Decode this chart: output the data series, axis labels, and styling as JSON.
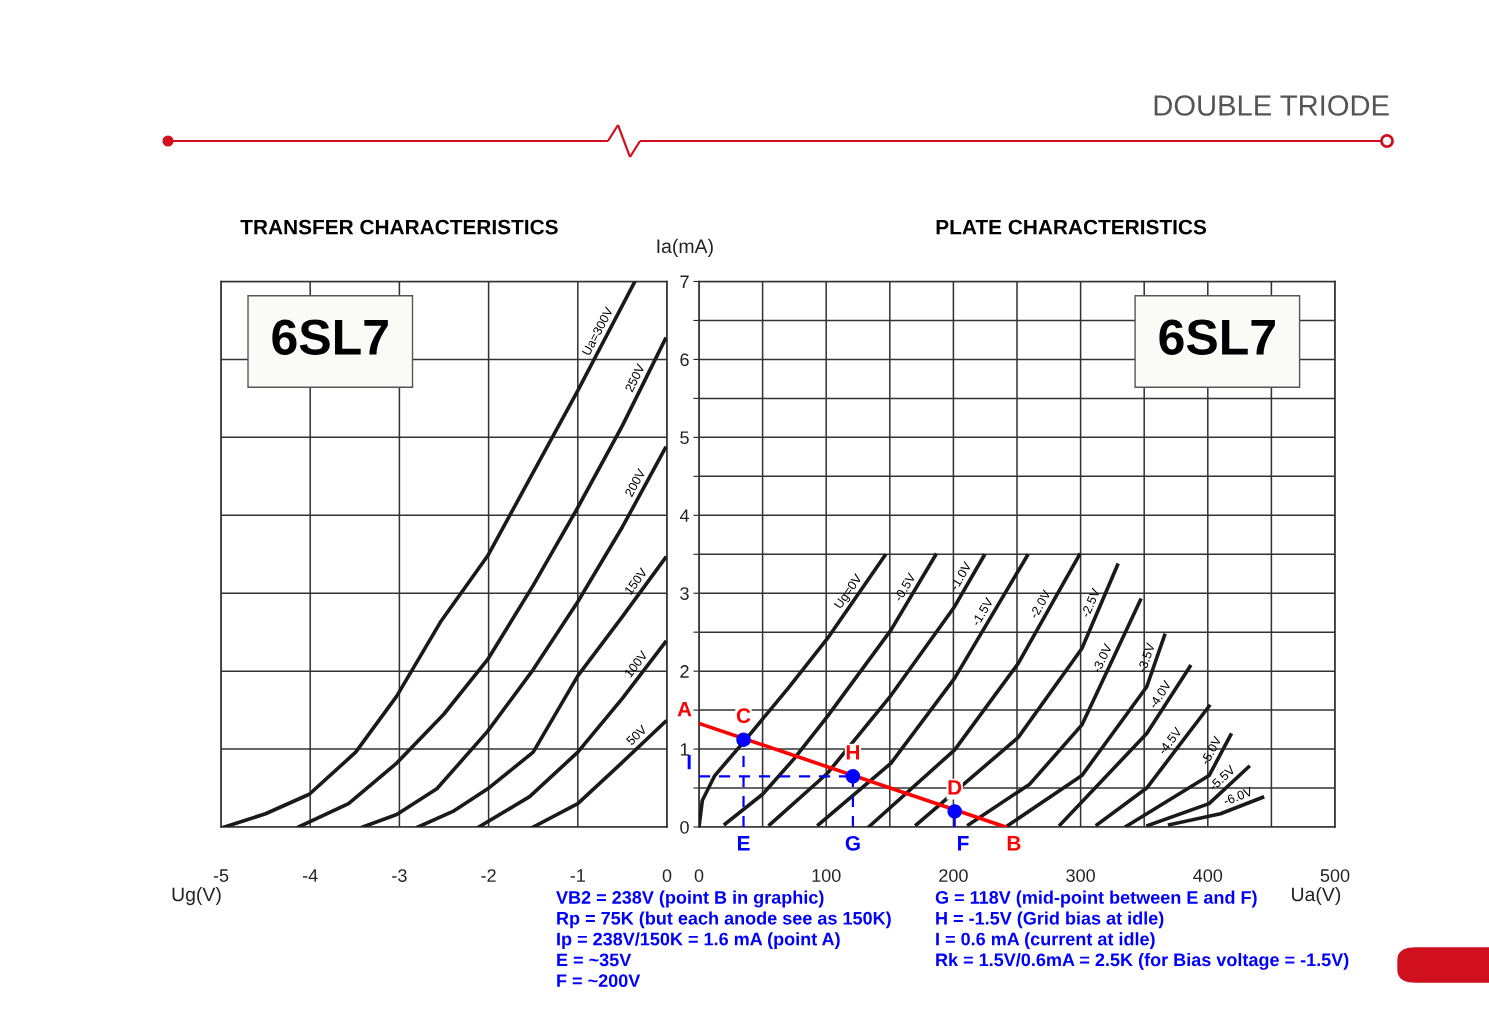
{
  "chart_data": [
    {
      "type": "line",
      "title": "TRANSFER CHARACTERISTICS",
      "xlabel": "Ug(V)",
      "ylabel": "Ia(mA)",
      "xlim": [
        -5,
        0
      ],
      "ylim": [
        0,
        7
      ],
      "xticks": [
        -5,
        -4,
        -3,
        -2,
        -1,
        0
      ],
      "yticks": [
        0,
        1,
        2,
        3,
        4,
        5,
        6,
        7
      ],
      "grid": true,
      "annotations": [
        "6SL7",
        "DOUBLE TRIODE"
      ],
      "series": [
        {
          "name": "Ua=300V",
          "color": "#1a1a1a",
          "x": [
            -4.96,
            -4.5,
            -4.01,
            -3.49,
            -3.03,
            -2.54,
            -2.01,
            -1.5,
            -1.0,
            -0.36
          ],
          "values": [
            0,
            0.17,
            0.42,
            0.96,
            1.68,
            2.63,
            3.48,
            4.55,
            5.6,
            7.0
          ]
        },
        {
          "name": "250V",
          "color": "#1a1a1a",
          "x": [
            -4.13,
            -3.57,
            -3.03,
            -2.5,
            -2.01,
            -1.5,
            -1.0,
            -0.5,
            -0.02
          ],
          "values": [
            0,
            0.3,
            0.82,
            1.45,
            2.15,
            3.1,
            4.1,
            5.15,
            6.26
          ]
        },
        {
          "name": "200V",
          "color": "#1a1a1a",
          "x": [
            -3.41,
            -3.03,
            -2.58,
            -2.01,
            -1.5,
            -1.0,
            -0.5,
            -0.02
          ],
          "values": [
            0,
            0.16,
            0.49,
            1.23,
            2.02,
            2.89,
            3.85,
            4.86
          ]
        },
        {
          "name": "150V",
          "color": "#1a1a1a",
          "x": [
            -2.79,
            -2.4,
            -2.01,
            -1.5,
            -1.0,
            -0.5,
            -0.02
          ],
          "values": [
            0,
            0.2,
            0.49,
            0.96,
            1.94,
            2.7,
            3.45
          ]
        },
        {
          "name": "100V",
          "color": "#1a1a1a",
          "x": [
            -2.11,
            -1.54,
            -1.0,
            -0.5,
            -0.02
          ],
          "values": [
            0,
            0.39,
            0.96,
            1.65,
            2.37
          ]
        },
        {
          "name": "50V",
          "color": "#1a1a1a",
          "x": [
            -1.5,
            -1.0,
            -0.51,
            -0.02
          ],
          "values": [
            0,
            0.3,
            0.82,
            1.35
          ]
        }
      ]
    },
    {
      "type": "line",
      "title": "PLATE CHARACTERISTICS",
      "xlabel": "Ua(V)",
      "xlim": [
        0,
        500
      ],
      "ylim": [
        0,
        7
      ],
      "tick_labels": "x",
      "grid": true,
      "xticks": [
        0,
        {
          "value": 50,
          "label": null
        },
        100,
        {
          "value": 150,
          "label": null
        },
        200,
        {
          "value": 250,
          "label": null
        },
        300,
        {
          "value": 350,
          "label": null
        },
        400,
        {
          "value": 450,
          "label": null
        },
        500
      ],
      "yticks": [
        0,
        {
          "value": 0.5,
          "label": null
        },
        1,
        {
          "value": 1.5,
          "label": null
        },
        2,
        {
          "value": 2.5,
          "label": null
        },
        3,
        {
          "value": 3.5,
          "label": null
        },
        4,
        {
          "value": 4.5,
          "label": null
        },
        5,
        {
          "value": 5.5,
          "label": null
        },
        6,
        {
          "value": 6.5,
          "label": null
        },
        7
      ],
      "annotations": [
        "6SL7",
        {
          "text": "A",
          "x": 0,
          "y": 1.33
        },
        {
          "text": "B",
          "x": 241,
          "y": 0
        },
        {
          "text": "C",
          "x": 35,
          "y": 1.12
        },
        {
          "text": "D",
          "x": 201,
          "y": 0.2
        },
        {
          "text": "E",
          "x": 35,
          "y": 0
        },
        {
          "text": "F",
          "x": 201,
          "y": 0
        },
        {
          "text": "G",
          "x": 121,
          "y": 0
        },
        {
          "text": "H",
          "x": 121,
          "y": 0.65
        },
        {
          "text": "I",
          "x": 0,
          "y": 0.65
        },
        "VB2 = 238V (point B in graphic)",
        "Rp = 75K (but each anode see as 150K)",
        "Ip = 238V/150K = 1.6 mA (point A)",
        "E = ~35V",
        "F = ~200V",
        "G = 118V (mid-point between E and F)",
        "H = -1.5V (Grid bias at idle)",
        "I = 0.6 mA (current at idle)",
        "Rk = 1.5V/0.6mA = 2.5K (for Bias voltage = -1.5V)"
      ],
      "series": [
        {
          "name": "Ug=0V",
          "color": "#1a1a1a",
          "x": [
            0,
            2.6,
            12.4,
            35,
            70,
            101,
            146
          ],
          "values": [
            0,
            0.34,
            0.66,
            1.09,
            1.78,
            2.42,
            3.48
          ]
        },
        {
          "name": "-0.5V",
          "color": "#1a1a1a",
          "x": [
            20.6,
            50,
            75,
            101,
            151,
            186
          ],
          "values": [
            0.04,
            0.42,
            0.88,
            1.42,
            2.53,
            3.49
          ]
        },
        {
          "name": "-1.0V",
          "color": "#1a1a1a",
          "x": [
            55.7,
            101,
            151,
            201,
            224
          ],
          "values": [
            0.03,
            0.69,
            1.69,
            2.83,
            3.48
          ]
        },
        {
          "name": "-1.5V",
          "color": "#1a1a1a",
          "x": [
            94,
            151,
            201,
            258
          ],
          "values": [
            0.03,
            0.82,
            1.91,
            3.48
          ]
        },
        {
          "name": "-2.0V",
          "color": "#1a1a1a",
          "x": [
            134,
            201,
            251,
            299
          ],
          "values": [
            0.01,
            0.99,
            2.1,
            3.49
          ]
        },
        {
          "name": "-2.5V",
          "color": "#1a1a1a",
          "x": [
            171,
            251,
            301,
            329
          ],
          "values": [
            0.03,
            1.15,
            2.29,
            3.36
          ]
        },
        {
          "name": "-3.0V",
          "color": "#1a1a1a",
          "x": [
            212,
            260,
            301,
            347
          ],
          "values": [
            0.03,
            0.55,
            1.31,
            2.91
          ]
        },
        {
          "name": "-3.5V",
          "color": "#1a1a1a",
          "x": [
            242,
            301,
            352,
            366
          ],
          "values": [
            0.01,
            0.66,
            1.8,
            2.46
          ]
        },
        {
          "name": "-4.0V",
          "color": "#1a1a1a",
          "x": [
            284,
            352,
            386
          ],
          "values": [
            0.03,
            1.2,
            2.06
          ]
        },
        {
          "name": "-4.5V",
          "color": "#1a1a1a",
          "x": [
            313,
            352,
            401
          ],
          "values": [
            0.03,
            0.5,
            1.55
          ]
        },
        {
          "name": "-5.0V",
          "color": "#1a1a1a",
          "x": [
            336,
            401,
            418
          ],
          "values": [
            0.01,
            0.66,
            1.18
          ]
        },
        {
          "name": "-5.5V",
          "color": "#1a1a1a",
          "x": [
            353,
            401,
            432
          ],
          "values": [
            0.02,
            0.3,
            0.77
          ]
        },
        {
          "name": "-6.0V",
          "color": "#1a1a1a",
          "x": [
            370,
            410,
            443
          ],
          "values": [
            0.03,
            0.17,
            0.38
          ]
        },
        {
          "color": "#ff0000",
          "x": [
            0,
            241
          ],
          "values": [
            1.33,
            0
          ]
        },
        {
          "color": "#0000ff",
          "line_style": "dashed",
          "x": [
            35,
            35
          ],
          "values": [
            0,
            1.12
          ]
        },
        {
          "color": "#0000ff",
          "line_style": "dashed",
          "x": [
            121,
            121
          ],
          "values": [
            0,
            0.65
          ]
        },
        {
          "color": "#0000ff",
          "line_style": "dashed",
          "x": [
            0,
            121
          ],
          "values": [
            0.65,
            0.65
          ]
        },
        {
          "color": "#0000ff",
          "line_style": "dashed",
          "x": [
            201,
            201
          ],
          "values": [
            0,
            0.2
          ]
        },
        {
          "type": "scatter",
          "marker": "circle",
          "color": "#0000ff",
          "x": [
            35,
            121,
            201
          ],
          "values": [
            1.12,
            0.65,
            0.2
          ]
        }
      ]
    }
  ]
}
